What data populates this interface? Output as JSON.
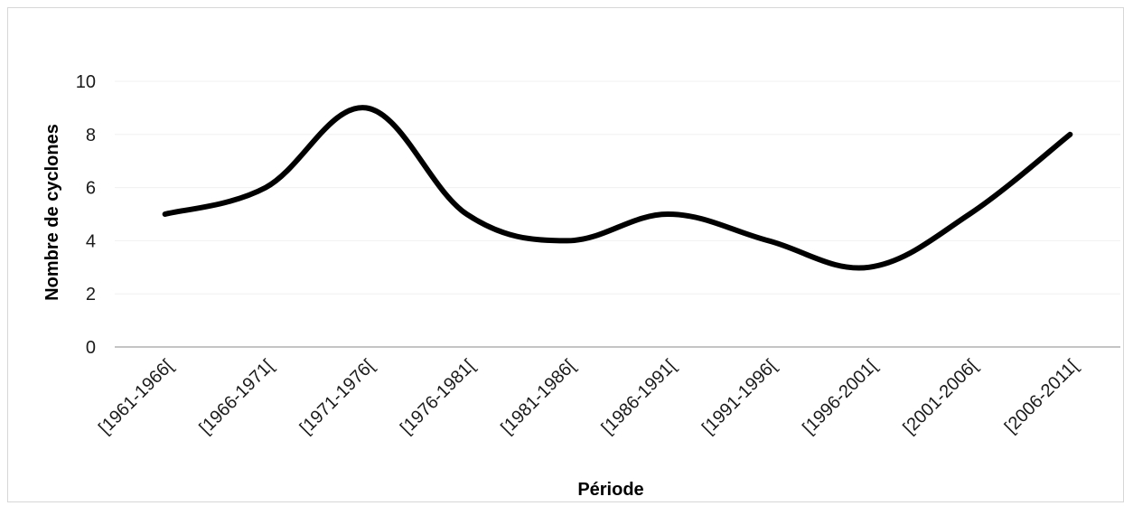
{
  "chart_data": {
    "type": "line",
    "title": "",
    "xlabel": "Période",
    "ylabel": "Nombre de cyclones",
    "categories": [
      "[1961-1966[",
      "[1966-1971[",
      "[1971-1976[",
      "[1976-1981[",
      "[1981-1986[",
      "[1986-1991[",
      "[1991-1996[",
      "[1996-2001[",
      "[2001-2006[",
      "[2006-2011["
    ],
    "series": [
      {
        "values": [
          5,
          6,
          9,
          5,
          4,
          5,
          4,
          3,
          5,
          8
        ]
      }
    ],
    "ylim": [
      0,
      10
    ],
    "yticks": [
      "0",
      "2",
      "4",
      "6",
      "8",
      "10"
    ],
    "grid": true,
    "smooth": true,
    "line_color": "#000000"
  }
}
